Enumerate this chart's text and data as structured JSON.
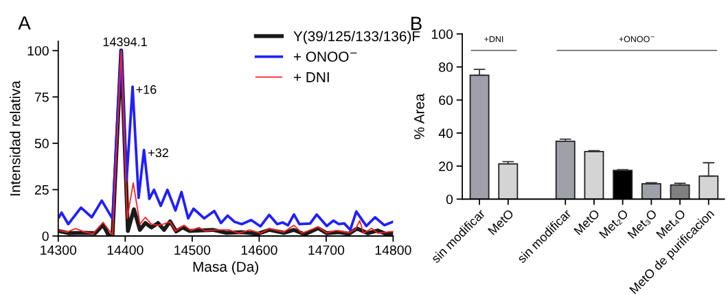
{
  "chart_data": [
    {
      "type": "line",
      "xlabel": "Masa (Da)",
      "ylabel": "Intensidad relativa",
      "xlim": [
        14300,
        14800
      ],
      "xticks": [
        14300,
        14400,
        14500,
        14600,
        14700,
        14800
      ],
      "ylim": [
        0,
        105
      ],
      "yticks": [
        0,
        25,
        50,
        75,
        100
      ],
      "grid": false,
      "legend": "top right",
      "marker": "none",
      "line_style": "solid",
      "annotations": [
        "A",
        {
          "text": "14394.1",
          "x": 14394,
          "y": 100
        },
        {
          "text": "+16",
          "x": 14410,
          "y": 80.5
        },
        {
          "text": "+32",
          "x": 14428,
          "y": 46.4
        }
      ],
      "series": [
        {
          "name": "Y(39/125/133/136)F",
          "color": "#1a1a1a",
          "x": [
            14301,
            14316,
            14340,
            14355,
            14367,
            14375,
            14381,
            14394,
            14404,
            14413,
            14422,
            14430,
            14439,
            14449,
            14458,
            14467,
            14476,
            14486,
            14496,
            14512,
            14531,
            14551,
            14574,
            14598,
            14615,
            14637,
            14652,
            14668,
            14688,
            14701,
            14719,
            14734,
            14746,
            14762,
            14777,
            14789,
            14800
          ],
          "values": [
            2.7,
            1.5,
            1.7,
            1.5,
            6,
            0.5,
            0.2,
            100,
            2.7,
            14.4,
            3.3,
            7,
            4.6,
            7,
            3.3,
            7.9,
            2.5,
            4.6,
            2.7,
            3,
            3.3,
            1.7,
            2.1,
            1.2,
            3.3,
            1.7,
            3.3,
            0.9,
            4.2,
            1.5,
            2.1,
            1.2,
            4,
            1.5,
            3,
            1.2,
            1.5
          ]
        },
        {
          "name": "+ ONOO$^{−}$",
          "color": "#1f1fff",
          "x": [
            14301,
            14305,
            14315,
            14334,
            14350,
            14365,
            14381,
            14389,
            14394,
            14402,
            14411,
            14420,
            14428,
            14436,
            14443,
            14453,
            14463,
            14475,
            14484,
            14494,
            14502,
            14518,
            14533,
            14543,
            14553,
            14563,
            14574,
            14588,
            14602,
            14615,
            14627,
            14635,
            14643,
            14652,
            14660,
            14676,
            14686,
            14701,
            14711,
            14719,
            14727,
            14736,
            14745,
            14760,
            14773,
            14787,
            14800
          ],
          "values": [
            10.1,
            12.6,
            6.4,
            15.3,
            10.1,
            19.1,
            9.3,
            68,
            100,
            29.9,
            80.5,
            20.6,
            46.4,
            20,
            24.9,
            16.3,
            24.9,
            13.8,
            23.7,
            9.5,
            14.7,
            9.5,
            13.5,
            7,
            11,
            7.7,
            6.4,
            8.6,
            5.2,
            11.4,
            6.4,
            7.3,
            5.8,
            11.6,
            6.4,
            6.7,
            11.6,
            5.4,
            8.3,
            6.4,
            6.8,
            3.3,
            13.2,
            5.4,
            10.1,
            5.8,
            7.7
          ]
        },
        {
          "name": "+ DNI",
          "color": "#ff2020",
          "x": [
            14301,
            14313,
            14326,
            14340,
            14352,
            14367,
            14381,
            14394,
            14403,
            14412,
            14422,
            14430,
            14439,
            14449,
            14457,
            14467,
            14475,
            14488,
            14498,
            14510,
            14520,
            14535,
            14555,
            14570,
            14586,
            14602,
            14615,
            14637,
            14652,
            14664,
            14688,
            14701,
            14715,
            14734,
            14744,
            14750,
            14756,
            14768,
            14777,
            14800
          ],
          "values": [
            3,
            2.1,
            4,
            2.1,
            1.2,
            7.4,
            0.5,
            100,
            9.5,
            28.6,
            6.4,
            10.1,
            6.4,
            5.8,
            6.4,
            7.7,
            2.7,
            5.8,
            3,
            4.6,
            2.7,
            3.3,
            3.3,
            1.5,
            3.3,
            1.5,
            4,
            2.1,
            5.8,
            1.5,
            4.9,
            1.7,
            3,
            1.7,
            3.7,
            8.3,
            1.5,
            4.2,
            1.5,
            2.5
          ]
        }
      ]
    },
    {
      "type": "bar",
      "ylabel": "% Area",
      "ylim": [
        0,
        100
      ],
      "yticks": [
        0,
        20,
        40,
        60,
        80,
        100
      ],
      "grid": false,
      "annotations": [
        "B",
        "+DNI",
        "+ONOO$^{−}$"
      ],
      "categories": [
        "sin modificar",
        "MetO",
        null,
        "sin modificar",
        "MetO",
        "Met₂O",
        "Met₃O",
        "Met₄O",
        "MetO de purificacion"
      ],
      "values": [
        75,
        21.3,
        null,
        35,
        28.8,
        17.4,
        9.3,
        8.6,
        14
      ],
      "errors": [
        [
          75,
          78.5
        ],
        [
          21.3,
          22.7
        ],
        null,
        [
          35,
          36.3
        ],
        [
          28.8,
          29.3
        ],
        [
          17.4,
          17.8
        ],
        [
          9.3,
          9.9
        ],
        [
          8.6,
          9.6
        ],
        [
          14,
          22
        ]
      ],
      "colors": [
        "#a0a0a8",
        "#d4d4d4",
        "#ffffff",
        "#a0a0a8",
        "#d4d4d4",
        "#000000",
        "#a0a0a8",
        "#808080",
        "#d4d4d4"
      ]
    }
  ]
}
